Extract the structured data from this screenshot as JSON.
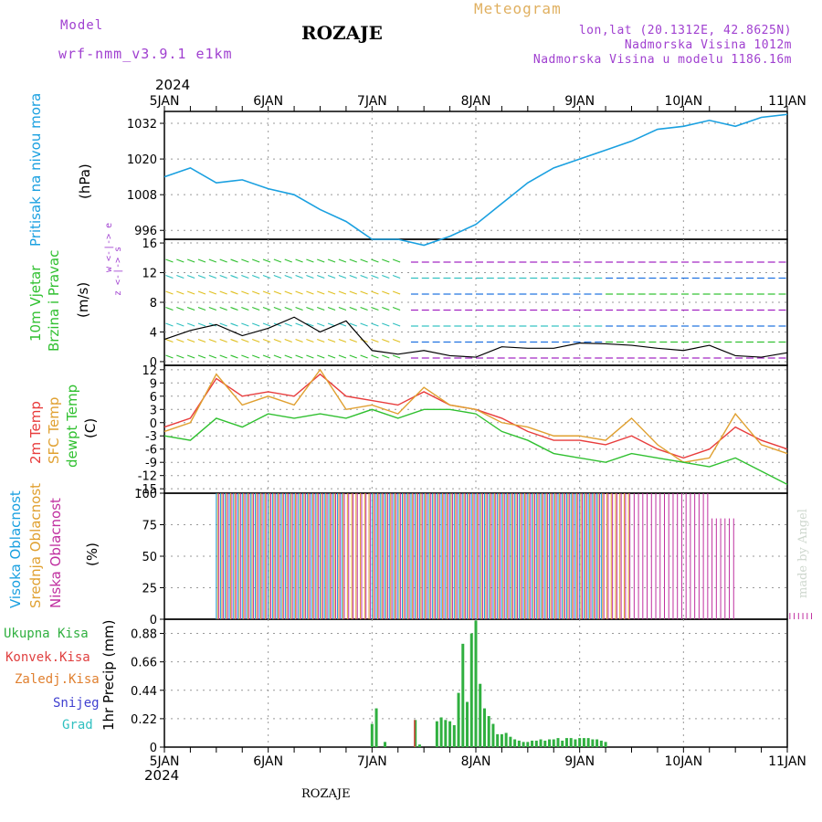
{
  "header": {
    "model_label": "Model",
    "model_name": "wrf-nmm_v3.9.1 e1km",
    "station": "ROZAJE",
    "meteogram": "Meteogram",
    "lonlat": "lon,lat (20.1312E, 42.8625N)",
    "alt1": "Nadmorska Visina 1012m",
    "alt2": "Nadmorska Visina u modelu 1186.16m",
    "year_top": "2024",
    "year_bottom": "2024",
    "footer": "ROZAJE",
    "credit": "made by Angel"
  },
  "x_labels": [
    "5JAN",
    "6JAN",
    "7JAN",
    "8JAN",
    "9JAN",
    "10JAN",
    "11JAN"
  ],
  "panels": {
    "pressure": {
      "label_main": "Pritisak na nivou mora",
      "unit": "(hPa)",
      "ticks": [
        "1032",
        "1020",
        "1008",
        "996"
      ]
    },
    "wind": {
      "label_1": "10m Vjetar",
      "label_2": "Brzina i Pravac",
      "unit": "(m/s)",
      "ticks": [
        "16",
        "12",
        "8",
        "4",
        "0"
      ],
      "compass": "w <-|-> e",
      "compass2": "z <-|-> s"
    },
    "temp": {
      "label_1": "2m Temp",
      "label_2": "SFC Temp",
      "label_3": "dewpt Temp",
      "unit": "(C)",
      "ticks": [
        "12",
        "9",
        "6",
        "3",
        "0",
        "-3",
        "-6",
        "-9",
        "-12",
        "-15"
      ]
    },
    "cloud": {
      "label_1": "Visoka Oblacnost",
      "label_2": "Srednja Oblacnost",
      "label_3": "Niska Oblacnost",
      "unit": "(%)",
      "ticks": [
        "100",
        "75",
        "50",
        "25",
        "0"
      ]
    },
    "precip": {
      "legend": [
        "Ukupna Kisa",
        "Konvek.Kisa",
        "Zaledj.Kisa",
        "Snijeg",
        "Grad"
      ],
      "unit": "1hr Precip (mm)",
      "ticks": [
        "0.88",
        "0.66",
        "0.44",
        "0.22",
        "0"
      ]
    }
  },
  "colors": {
    "pressure": "#1aa0e0",
    "temp2m": "#e83c3c",
    "sfc": "#e0a030",
    "dewpt": "#30c030",
    "precip_total": "#30b040",
    "precip_conv": "#e04040",
    "precip_frz": "#e08030",
    "precip_snow": "#4040d0",
    "precip_grad": "#30c0c0",
    "wind_speed": "#000000",
    "cloud_high": "#1aa0e0",
    "cloud_mid": "#e0a030",
    "cloud_low": "#c030a0"
  },
  "chart_data": [
    {
      "type": "line",
      "title": "Pritisak na nivou mora",
      "ylabel": "(hPa)",
      "ylim": [
        993,
        1036
      ],
      "x": [
        0,
        6,
        12,
        18,
        24,
        30,
        36,
        42,
        48,
        54,
        60,
        66,
        72,
        78,
        84,
        90,
        96,
        102,
        108,
        114,
        120,
        126,
        132,
        138,
        144
      ],
      "series": [
        {
          "values": [
            1014,
            1017,
            1012,
            1013,
            1010,
            1008,
            1003,
            999,
            993,
            993,
            991,
            994,
            998,
            1005,
            1012,
            1017,
            1020,
            1023,
            1026,
            1030,
            1031,
            1033,
            1031,
            1034,
            1035
          ]
        }
      ]
    },
    {
      "type": "line",
      "title": "10m Vjetar",
      "ylabel": "(m/s)",
      "ylim": [
        -0.5,
        16.5
      ],
      "x": [
        0,
        6,
        12,
        18,
        24,
        30,
        36,
        42,
        48,
        54,
        60,
        66,
        72,
        78,
        84,
        90,
        96,
        102,
        108,
        114,
        120,
        126,
        132,
        138,
        144
      ],
      "series": [
        {
          "values": [
            3,
            4.2,
            5,
            3.5,
            4.5,
            6,
            4,
            5.5,
            1.5,
            1,
            1.5,
            0.8,
            0.6,
            2,
            1.8,
            1.8,
            2.5,
            2.4,
            2.2,
            1.8,
            1.5,
            2.2,
            0.8,
            0.6,
            1.2
          ]
        }
      ]
    },
    {
      "type": "line",
      "title": "2m Temp / SFC Temp / dewpt Temp",
      "ylabel": "(C)",
      "ylim": [
        -16,
        13
      ],
      "x": [
        0,
        6,
        12,
        18,
        24,
        30,
        36,
        42,
        48,
        54,
        60,
        66,
        72,
        78,
        84,
        90,
        96,
        102,
        108,
        114,
        120,
        126,
        132,
        138,
        144
      ],
      "series": [
        {
          "name": "2m Temp",
          "values": [
            -1,
            1,
            10,
            6,
            7,
            6,
            11,
            6,
            5,
            4,
            7,
            4,
            3,
            1,
            -2,
            -4,
            -4,
            -5,
            -3,
            -6,
            -8,
            -6,
            -1,
            -4,
            -6
          ]
        },
        {
          "name": "SFC Temp",
          "values": [
            -2,
            0,
            11,
            4,
            6,
            4,
            12,
            3,
            4,
            2,
            8,
            4,
            3,
            0,
            -1,
            -3,
            -3,
            -4,
            1,
            -5,
            -9,
            -8,
            2,
            -5,
            -7
          ]
        },
        {
          "name": "dewpt Temp",
          "values": [
            -3,
            -4,
            1,
            -1,
            2,
            1,
            2,
            1,
            3,
            1,
            3,
            3,
            2,
            -2,
            -4,
            -7,
            -8,
            -9,
            -7,
            -8,
            -9,
            -10,
            -8,
            -11,
            -14
          ]
        }
      ]
    },
    {
      "type": "bar",
      "title": "Oblacnost",
      "ylabel": "(%)",
      "ylim": [
        0,
        100
      ],
      "x_start": 0,
      "x_step": 6,
      "series": [
        {
          "name": "Visoka Oblacnost",
          "values": [
            0,
            0,
            100,
            100,
            100,
            100,
            100,
            0,
            100,
            100,
            100,
            100,
            100,
            100,
            100,
            100,
            100,
            0,
            0,
            0,
            0,
            0,
            0,
            0,
            0
          ]
        },
        {
          "name": "Srednja Oblacnost",
          "values": [
            0,
            0,
            100,
            100,
            100,
            100,
            100,
            100,
            100,
            100,
            100,
            100,
            100,
            100,
            100,
            100,
            100,
            100,
            0,
            0,
            0,
            0,
            0,
            0,
            0
          ]
        },
        {
          "name": "Niska Oblacnost",
          "values": [
            0,
            0,
            100,
            100,
            100,
            100,
            100,
            100,
            100,
            100,
            100,
            100,
            100,
            100,
            100,
            100,
            100,
            100,
            100,
            100,
            100,
            80,
            0,
            0,
            5
          ]
        }
      ]
    },
    {
      "type": "bar",
      "title": "1hr Precip",
      "ylabel": "(mm)",
      "ylim": [
        0,
        0.99
      ],
      "x": [
        48,
        49,
        51,
        58,
        59,
        63,
        64,
        65,
        66,
        67,
        68,
        69,
        70,
        71,
        72,
        73,
        74,
        75,
        76,
        77,
        78,
        79,
        80,
        81,
        82,
        83,
        84,
        85,
        86,
        87,
        88,
        89,
        90,
        91,
        92,
        93,
        94,
        95,
        96,
        97,
        98,
        99,
        100,
        101,
        102
      ],
      "series": [
        {
          "name": "Ukupna Kisa",
          "values": [
            0.18,
            0.3,
            0.04,
            0.21,
            0.02,
            0.2,
            0.23,
            0.21,
            0.2,
            0.17,
            0.42,
            0.8,
            0.35,
            0.88,
            0.98,
            0.49,
            0.3,
            0.24,
            0.18,
            0.1,
            0.1,
            0.11,
            0.08,
            0.06,
            0.05,
            0.04,
            0.04,
            0.05,
            0.05,
            0.06,
            0.05,
            0.06,
            0.06,
            0.07,
            0.05,
            0.07,
            0.07,
            0.06,
            0.07,
            0.07,
            0.07,
            0.06,
            0.06,
            0.05,
            0.04
          ]
        },
        {
          "name": "Konvek.Kisa",
          "values": [
            0,
            0,
            0,
            0.21,
            0,
            0,
            0,
            0,
            0,
            0,
            0,
            0,
            0,
            0,
            0,
            0,
            0,
            0,
            0,
            0,
            0,
            0,
            0,
            0,
            0,
            0,
            0,
            0,
            0,
            0,
            0,
            0,
            0,
            0,
            0,
            0,
            0,
            0,
            0,
            0,
            0,
            0,
            0,
            0,
            0
          ]
        }
      ]
    }
  ]
}
